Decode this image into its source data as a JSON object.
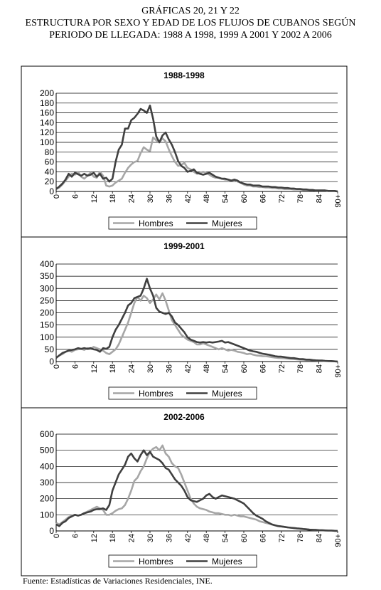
{
  "header": {
    "line1": "GRÁFICAS 20, 21 Y 22",
    "line2": "ESTRUCTURA POR SEXO Y EDAD DE LOS FLUJOS DE CUBANOS SEGÚN",
    "line3": "PERIODO DE LLEGADA: 1988 A 1998, 1999 A 2001 Y 2002 A 2006"
  },
  "footer": {
    "source": "Fuente: Estadísticas de Variaciones Residenciales, INE."
  },
  "colors": {
    "hombres": "#a6a6a6",
    "mujeres": "#404040",
    "grid": "#000000"
  },
  "chart_data": [
    {
      "type": "line",
      "title": "1988-1998",
      "ylim": [
        0,
        200
      ],
      "yticks": [
        0,
        20,
        40,
        60,
        80,
        100,
        120,
        140,
        160,
        180,
        200
      ],
      "xlim": [
        0,
        90
      ],
      "xtick_labels": [
        "0",
        "6",
        "12",
        "18",
        "24",
        "30",
        "36",
        "42",
        "48",
        "54",
        "60",
        "66",
        "72",
        "78",
        "84",
        "90+"
      ],
      "legend": {
        "position": "bottom",
        "entries": [
          "Hombres",
          "Mujeres"
        ]
      },
      "series": [
        {
          "name": "Hombres",
          "color": "#a6a6a6",
          "values": [
            5,
            8,
            14,
            22,
            30,
            36,
            34,
            40,
            30,
            26,
            32,
            38,
            30,
            28,
            40,
            32,
            12,
            10,
            12,
            18,
            22,
            26,
            38,
            48,
            55,
            60,
            62,
            78,
            90,
            85,
            82,
            110,
            104,
            100,
            108,
            102,
            86,
            72,
            60,
            52,
            54,
            58,
            48,
            45,
            40,
            36,
            38,
            40,
            38,
            34,
            30,
            28,
            28,
            26,
            24,
            24,
            22,
            24,
            20,
            18,
            14,
            12,
            12,
            10,
            10,
            9,
            9,
            8,
            8,
            7,
            7,
            6,
            6,
            5,
            5,
            5,
            4,
            4,
            4,
            3,
            3,
            3,
            3,
            2,
            2,
            2,
            2,
            1,
            1,
            1,
            0
          ]
        },
        {
          "name": "Mujeres",
          "color": "#404040",
          "values": [
            5,
            10,
            16,
            24,
            36,
            30,
            38,
            35,
            32,
            36,
            32,
            34,
            38,
            30,
            36,
            26,
            28,
            20,
            26,
            60,
            85,
            95,
            128,
            128,
            145,
            150,
            158,
            168,
            165,
            160,
            175,
            148,
            112,
            100,
            114,
            120,
            106,
            95,
            80,
            62,
            52,
            48,
            40,
            42,
            45,
            38,
            36,
            34,
            36,
            38,
            34,
            30,
            28,
            26,
            26,
            24,
            22,
            24,
            22,
            18,
            16,
            14,
            14,
            12,
            12,
            12,
            10,
            10,
            10,
            9,
            9,
            8,
            8,
            7,
            7,
            6,
            6,
            5,
            5,
            4,
            4,
            3,
            3,
            2,
            2,
            2,
            2,
            1,
            1,
            1,
            0
          ]
        }
      ]
    },
    {
      "type": "line",
      "title": "1999-2001",
      "ylim": [
        0,
        400
      ],
      "yticks": [
        0,
        50,
        100,
        150,
        200,
        250,
        300,
        350,
        400
      ],
      "xlim": [
        0,
        90
      ],
      "xtick_labels": [
        "0",
        "6",
        "12",
        "18",
        "24",
        "30",
        "36",
        "42",
        "48",
        "54",
        "60",
        "66",
        "72",
        "78",
        "84",
        "90+"
      ],
      "legend": {
        "position": "bottom",
        "entries": [
          "Hombres",
          "Mujeres"
        ]
      },
      "series": [
        {
          "name": "Hombres",
          "color": "#a6a6a6",
          "values": [
            15,
            25,
            30,
            40,
            45,
            40,
            48,
            50,
            52,
            48,
            55,
            52,
            60,
            55,
            50,
            45,
            35,
            30,
            40,
            50,
            70,
            100,
            130,
            160,
            200,
            240,
            265,
            250,
            270,
            260,
            240,
            255,
            275,
            255,
            280,
            250,
            210,
            170,
            150,
            130,
            110,
            100,
            90,
            85,
            80,
            70,
            70,
            75,
            70,
            65,
            60,
            55,
            50,
            55,
            50,
            45,
            48,
            45,
            40,
            38,
            35,
            30,
            32,
            28,
            25,
            24,
            22,
            22,
            20,
            18,
            16,
            15,
            14,
            13,
            12,
            11,
            10,
            9,
            8,
            7,
            6,
            6,
            5,
            4,
            3,
            3,
            2,
            2,
            1,
            1,
            0
          ]
        },
        {
          "name": "Mujeres",
          "color": "#404040",
          "values": [
            15,
            25,
            35,
            40,
            45,
            48,
            50,
            55,
            52,
            55,
            52,
            55,
            50,
            48,
            40,
            55,
            52,
            60,
            100,
            130,
            150,
            175,
            200,
            230,
            240,
            260,
            265,
            270,
            300,
            340,
            300,
            270,
            220,
            205,
            200,
            195,
            200,
            185,
            160,
            150,
            135,
            120,
            100,
            90,
            85,
            80,
            78,
            80,
            78,
            80,
            78,
            80,
            82,
            85,
            78,
            80,
            75,
            70,
            65,
            60,
            55,
            50,
            45,
            42,
            40,
            36,
            32,
            30,
            28,
            25,
            22,
            20,
            20,
            18,
            16,
            14,
            14,
            12,
            10,
            10,
            8,
            8,
            6,
            5,
            4,
            4,
            3,
            2,
            2,
            1,
            0
          ]
        }
      ]
    },
    {
      "type": "line",
      "title": "2002-2006",
      "ylim": [
        0,
        600
      ],
      "yticks": [
        0,
        100,
        200,
        300,
        400,
        500,
        600
      ],
      "xlim": [
        0,
        90
      ],
      "xtick_labels": [
        "0",
        "6",
        "12",
        "18",
        "24",
        "30",
        "36",
        "42",
        "48",
        "54",
        "60",
        "66",
        "72",
        "78",
        "84",
        "90+"
      ],
      "legend": {
        "position": "bottom",
        "entries": [
          "Hombres",
          "Mujeres"
        ]
      },
      "series": [
        {
          "name": "Hombres",
          "color": "#a6a6a6",
          "values": [
            50,
            40,
            55,
            70,
            85,
            95,
            100,
            95,
            100,
            110,
            120,
            130,
            140,
            150,
            140,
            130,
            100,
            100,
            110,
            125,
            135,
            140,
            160,
            200,
            250,
            310,
            330,
            370,
            400,
            450,
            490,
            510,
            520,
            500,
            530,
            480,
            460,
            420,
            400,
            390,
            350,
            300,
            250,
            200,
            170,
            150,
            140,
            135,
            130,
            120,
            115,
            110,
            110,
            105,
            100,
            100,
            95,
            100,
            95,
            90,
            90,
            85,
            80,
            75,
            70,
            60,
            55,
            50,
            45,
            40,
            35,
            30,
            28,
            25,
            22,
            20,
            18,
            16,
            14,
            12,
            10,
            8,
            7,
            6,
            5,
            4,
            3,
            2,
            2,
            1,
            0
          ]
        },
        {
          "name": "Mujeres",
          "color": "#404040",
          "values": [
            40,
            30,
            50,
            60,
            80,
            90,
            100,
            95,
            100,
            110,
            115,
            120,
            130,
            135,
            135,
            140,
            130,
            160,
            250,
            300,
            350,
            380,
            410,
            460,
            480,
            450,
            430,
            470,
            500,
            470,
            490,
            460,
            450,
            440,
            420,
            390,
            380,
            350,
            320,
            300,
            280,
            250,
            210,
            190,
            185,
            180,
            190,
            200,
            220,
            230,
            210,
            200,
            210,
            220,
            215,
            210,
            205,
            200,
            190,
            180,
            170,
            150,
            130,
            110,
            95,
            85,
            75,
            60,
            50,
            40,
            35,
            30,
            28,
            25,
            22,
            20,
            18,
            16,
            14,
            12,
            10,
            8,
            7,
            6,
            5,
            4,
            3,
            2,
            2,
            1,
            0
          ]
        }
      ]
    }
  ]
}
